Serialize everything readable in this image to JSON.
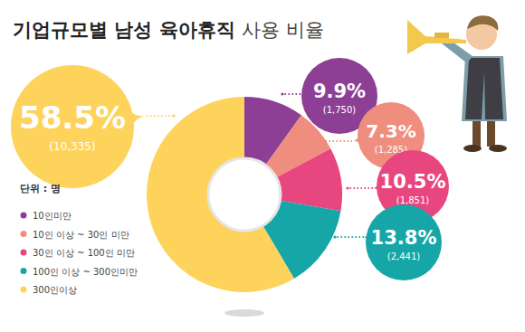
{
  "chart_data": {
    "type": "donut",
    "title": "기업규모별 남성 육아휴직 사용 비율",
    "unit_label": "단위 : 명",
    "categories": [
      "10인미만",
      "10인 이상 ~ 30인 미만",
      "30인 이상 ~ 100인 미만",
      "100인 이상 ~ 300인미만",
      "300인이상"
    ],
    "values": [
      9.9,
      7.3,
      10.5,
      13.8,
      58.5
    ],
    "value_labels": [
      "9.9%",
      "7.3%",
      "10.5%",
      "13.8%",
      "58.5%"
    ],
    "counts": [
      1750,
      1285,
      1851,
      2441,
      10335
    ],
    "count_labels": [
      "(1,750)",
      "(1,285)",
      "(1,851)",
      "(2,441)",
      "(10,335)"
    ],
    "colors": [
      "#8d3f95",
      "#ef8d7e",
      "#e8467f",
      "#17a6a8",
      "#fdd35b"
    ],
    "data_labels": true,
    "legend": "left"
  }
}
